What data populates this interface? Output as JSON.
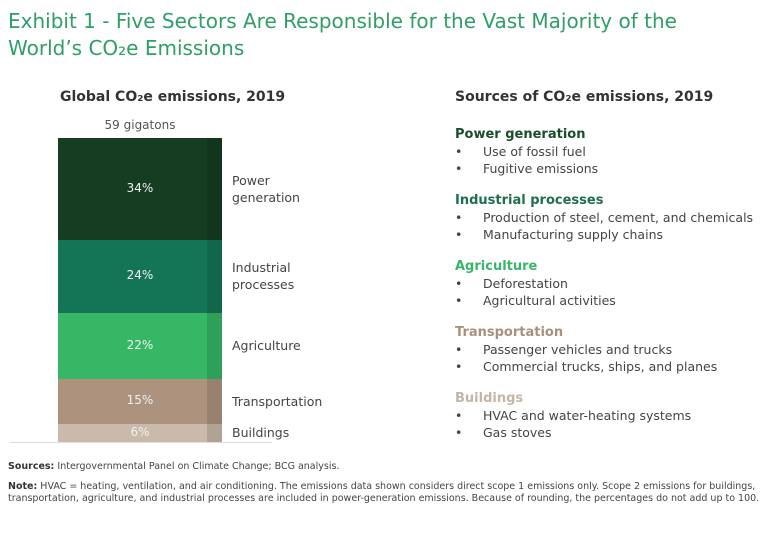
{
  "title": "Exhibit 1 - Five Sectors Are Responsible for the Vast Majority of the World’s CO₂e Emissions",
  "chart_data": {
    "type": "bar",
    "stacked": true,
    "title": "Global CO₂e emissions, 2019",
    "total_label": "59 gigatons",
    "categories": [
      "Power generation",
      "Industrial processes",
      "Agriculture",
      "Transportation",
      "Buildings"
    ],
    "values": [
      34,
      24,
      22,
      15,
      6
    ],
    "value_labels": [
      "34%",
      "24%",
      "22%",
      "15%",
      "6%"
    ],
    "colors": [
      "#143d22",
      "#147556",
      "#36b766",
      "#ad937e",
      "#c9baab"
    ]
  },
  "sources": {
    "title": "Sources of CO₂e emissions, 2019",
    "groups": [
      {
        "heading": "Power generation",
        "color": "#1b4d28",
        "items": [
          "Use of fossil fuel",
          "Fugitive emissions"
        ]
      },
      {
        "heading": "Industrial processes",
        "color": "#1f6e4e",
        "items": [
          "Production of steel, cement, and chemicals",
          "Manufacturing supply chains"
        ]
      },
      {
        "heading": "Agriculture",
        "color": "#3ab56a",
        "items": [
          "Deforestation",
          "Agricultural activities"
        ]
      },
      {
        "heading": "Transportation",
        "color": "#a8917c",
        "items": [
          "Passenger vehicles and trucks",
          "Commercial trucks, ships, and planes"
        ]
      },
      {
        "heading": "Buildings",
        "color": "#c4b6a7",
        "items": [
          "HVAC and water-heating systems",
          "Gas stoves"
        ]
      }
    ]
  },
  "footer": {
    "sources_label": "Sources:",
    "sources_text": "Intergovernmental Panel on Climate Change; BCG analysis.",
    "note_label": "Note:",
    "note_text": "HVAC = heating, ventilation, and air conditioning. The emissions data shown considers direct scope 1 emissions only. Scope 2 emissions for buildings, transportation, agriculture, and industrial processes are included in power-generation emissions. Because of rounding, the percentages do not add up to 100."
  }
}
